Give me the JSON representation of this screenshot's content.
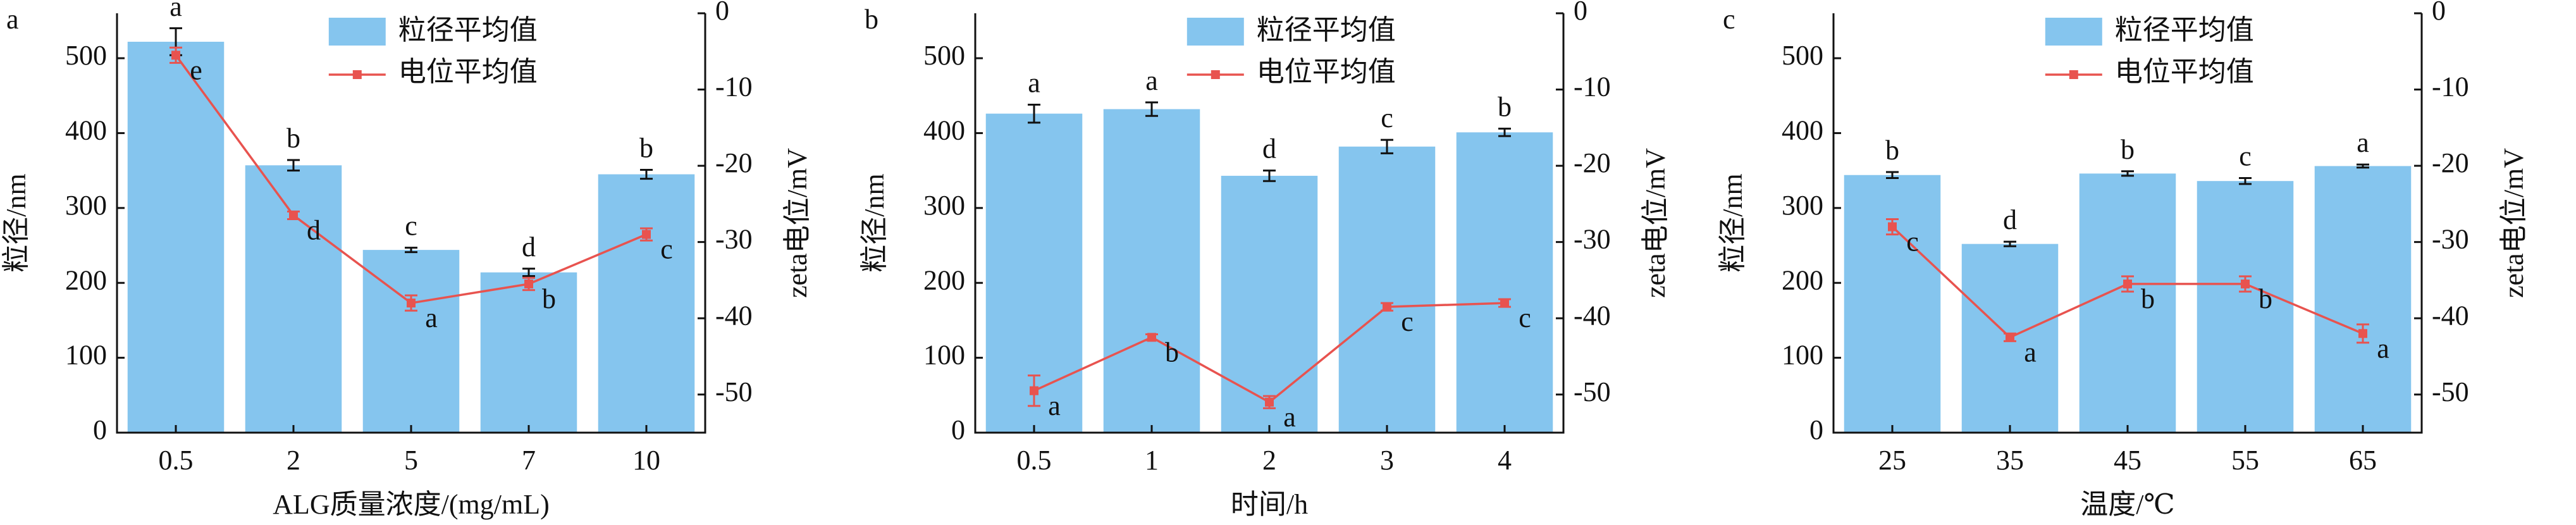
{
  "chart_data": [
    {
      "type": "combo",
      "panel": "a",
      "xlabel": "ALG质量浓度/(mg/mL)",
      "ylabel": "粒径/nm",
      "y2label": "zeta电位/mV",
      "categories": [
        "0.5",
        "2",
        "5",
        "7",
        "10"
      ],
      "series": [
        {
          "name": "粒径平均值",
          "color": "#85c5ee",
          "values": [
            522,
            357,
            244,
            214,
            345
          ],
          "errors": [
            18,
            7,
            3,
            5,
            6
          ],
          "letters": [
            "a",
            "b",
            "c",
            "d",
            "b"
          ]
        },
        {
          "name": "电位平均值",
          "color": "#e8534f",
          "axis": "y2",
          "values": [
            -5.5,
            -26.5,
            -38,
            -35.5,
            -29
          ],
          "errors": [
            1,
            0.5,
            1,
            0.8,
            0.8
          ],
          "letters": [
            "e",
            "d",
            "a",
            "b",
            "c"
          ]
        }
      ],
      "ylim": [
        0,
        560
      ],
      "yticks": [
        0,
        100,
        200,
        300,
        400,
        500
      ],
      "y2lim": [
        -55,
        0
      ],
      "y2ticks": [
        0,
        -10,
        -20,
        -30,
        -40,
        -50
      ]
    },
    {
      "type": "combo",
      "panel": "b",
      "xlabel": "时间/h",
      "ylabel": "粒径/nm",
      "y2label": "zeta电位/mV",
      "categories": [
        "0.5",
        "1",
        "2",
        "3",
        "4"
      ],
      "series": [
        {
          "name": "粒径平均值",
          "color": "#85c5ee",
          "values": [
            426,
            432,
            343,
            382,
            401
          ],
          "errors": [
            12,
            9,
            7,
            9,
            5
          ],
          "letters": [
            "a",
            "a",
            "d",
            "c",
            "b"
          ]
        },
        {
          "name": "电位平均值",
          "color": "#e8534f",
          "axis": "y2",
          "values": [
            -49.5,
            -42.5,
            -51,
            -38.5,
            -38
          ],
          "errors": [
            2,
            0.4,
            0.8,
            0.5,
            0.5
          ],
          "letters": [
            "a",
            "b",
            "a",
            "c",
            "c"
          ]
        }
      ],
      "ylim": [
        0,
        560
      ],
      "yticks": [
        0,
        100,
        200,
        300,
        400,
        500
      ],
      "y2lim": [
        -55,
        0
      ],
      "y2ticks": [
        0,
        -10,
        -20,
        -30,
        -40,
        -50
      ]
    },
    {
      "type": "combo",
      "panel": "c",
      "xlabel": "温度/℃",
      "ylabel": "粒径/nm",
      "y2label": "zeta电位/mV",
      "categories": [
        "25",
        "35",
        "45",
        "55",
        "65"
      ],
      "series": [
        {
          "name": "粒径平均值",
          "color": "#85c5ee",
          "values": [
            344,
            252,
            346,
            336,
            356
          ],
          "errors": [
            4,
            3,
            3,
            4,
            2
          ],
          "letters": [
            "b",
            "d",
            "b",
            "c",
            "a"
          ]
        },
        {
          "name": "电位平均值",
          "color": "#e8534f",
          "axis": "y2",
          "values": [
            -28,
            -42.5,
            -35.5,
            -35.5,
            -42
          ],
          "errors": [
            1,
            0.5,
            1,
            1,
            1.2
          ],
          "letters": [
            "c",
            "a",
            "b",
            "b",
            "a"
          ]
        }
      ],
      "ylim": [
        0,
        560
      ],
      "yticks": [
        0,
        100,
        200,
        300,
        400,
        500
      ],
      "y2lim": [
        -55,
        0
      ],
      "y2ticks": [
        0,
        -10,
        -20,
        -30,
        -40,
        -50
      ]
    }
  ]
}
